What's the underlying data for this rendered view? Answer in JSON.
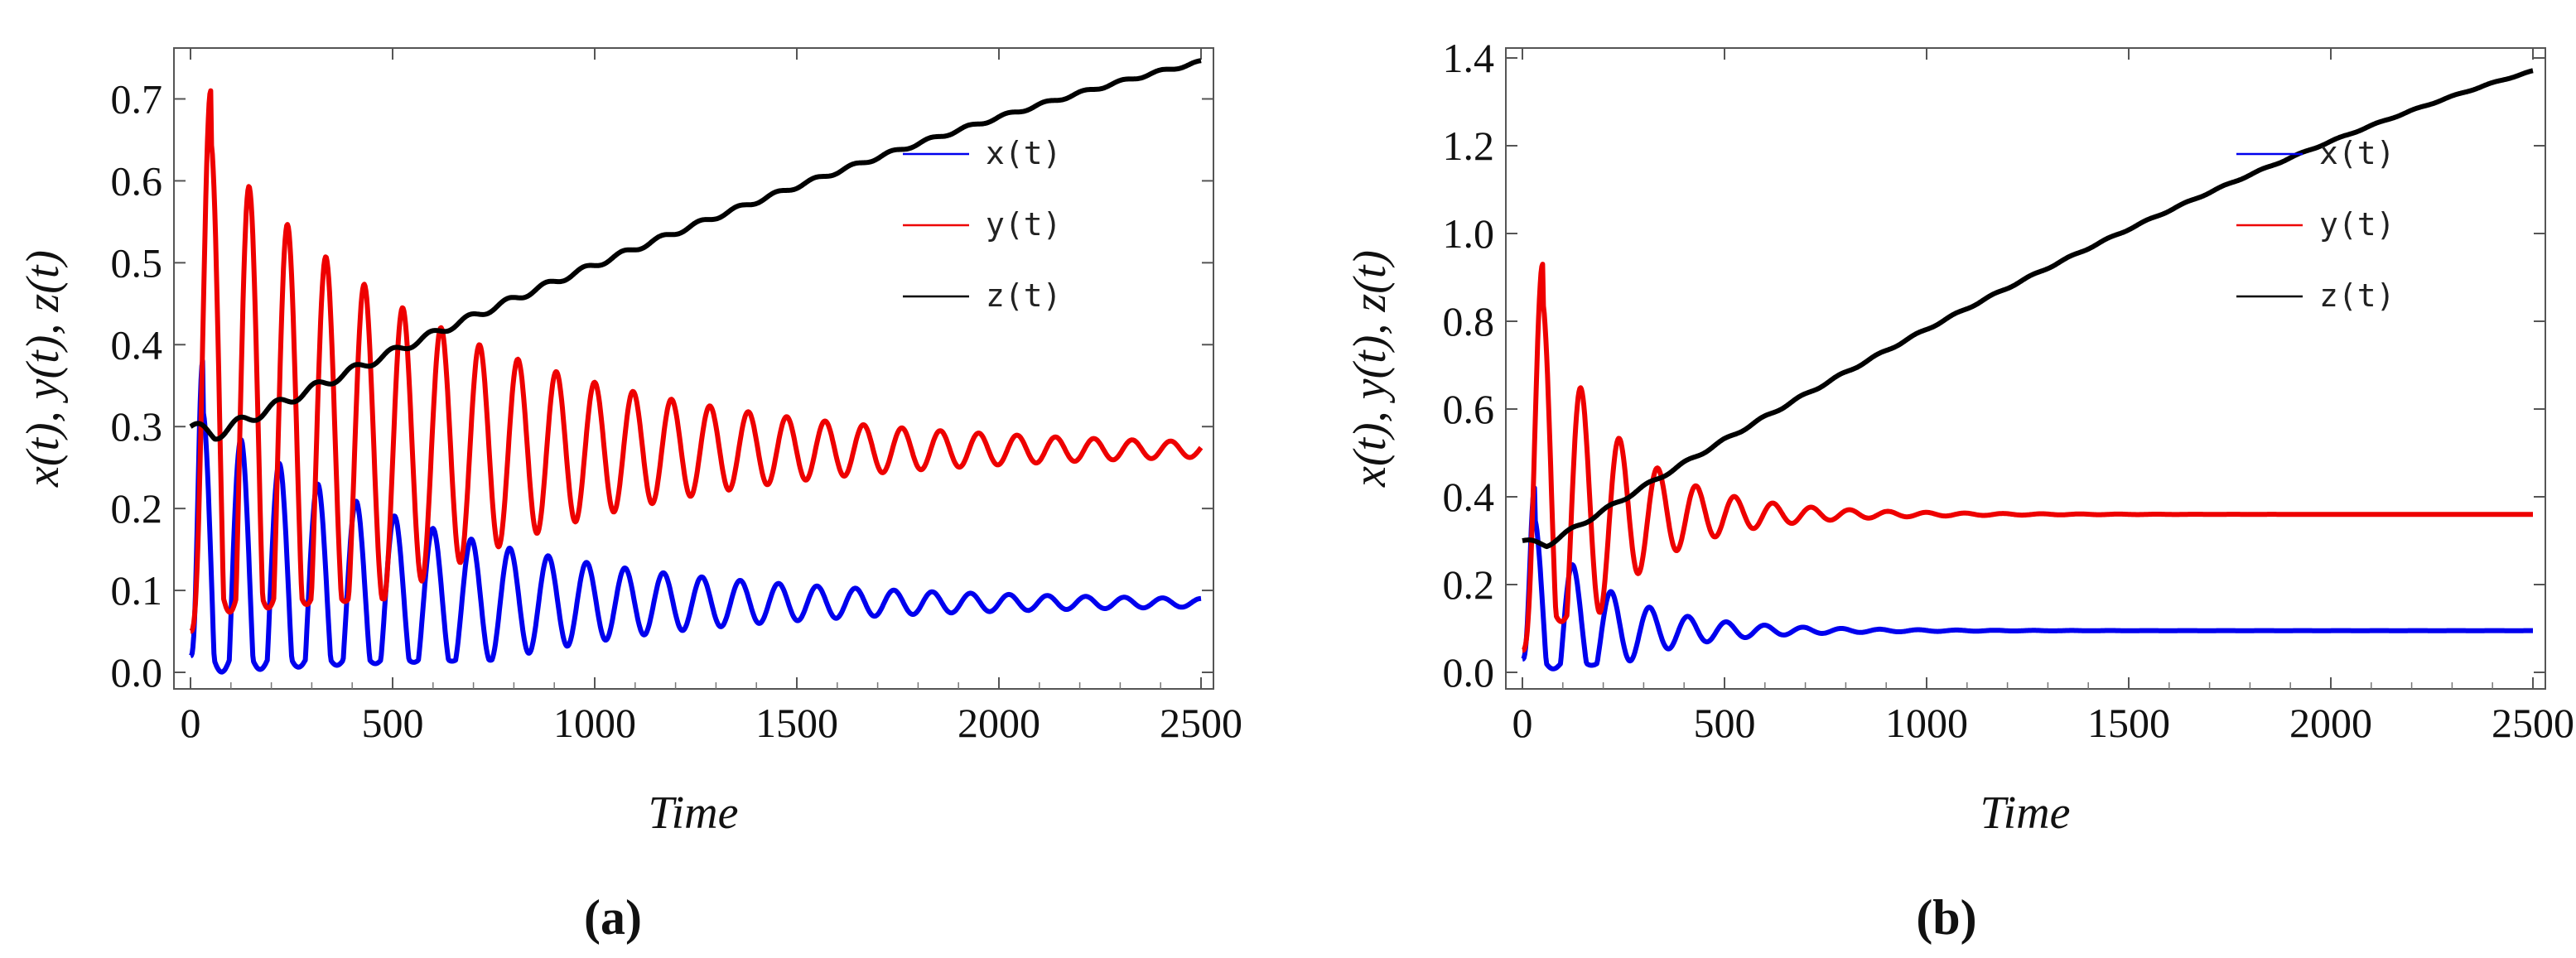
{
  "figure": {
    "caption_a": "(a)",
    "caption_b": "(b)"
  },
  "colors": {
    "x": "#0000ee",
    "y": "#ee0000",
    "z": "#000000"
  },
  "chart_data": [
    {
      "id": "a",
      "type": "line",
      "title": "",
      "xlabel": "Time",
      "ylabel": "x(t),  y(t),  z(t)",
      "xlim": [
        0,
        2500
      ],
      "ylim": [
        0,
        0.75
      ],
      "xticks": [
        0,
        500,
        1000,
        1500,
        2000,
        2500
      ],
      "xtick_labels": [
        "0",
        "500",
        "1000",
        "1500",
        "2000",
        "2500"
      ],
      "yticks": [
        0,
        0.1,
        0.2,
        0.3,
        0.4,
        0.5,
        0.6,
        0.7
      ],
      "ytick_labels": [
        "0.0",
        "0.1",
        "0.2",
        "0.3",
        "0.4",
        "0.5",
        "0.6",
        "0.7"
      ],
      "legend": [
        "x(t)",
        "y(t)",
        "z(t)"
      ],
      "legend_position": "upper-right",
      "grid": false,
      "series": [
        {
          "name": "x(t)",
          "color_key": "x",
          "initial": 0.02,
          "peak": 0.38,
          "peak_time": 30,
          "equilibrium": 0.085,
          "amp0": 0.16,
          "decay": 0.0012,
          "period": 95,
          "end_amp": 0.005,
          "trough_min": 0.015
        },
        {
          "name": "y(t)",
          "color_key": "y",
          "initial": 0.05,
          "peak": 0.71,
          "peak_time": 50,
          "equilibrium": 0.272,
          "amp0": 0.3,
          "decay": 0.0012,
          "period": 95,
          "end_amp": 0.008,
          "trough_min": 0.09
        },
        {
          "name": "z(t)",
          "color_key": "z",
          "start": 0.3,
          "dip": 0.29,
          "end": 0.745,
          "trend": "rising",
          "wiggle_amp": 0.006,
          "period": 95
        }
      ]
    },
    {
      "id": "b",
      "type": "line",
      "title": "",
      "xlabel": "Time",
      "ylabel": "x(t),  y(t),  z(t)",
      "xlim": [
        0,
        2500
      ],
      "ylim": [
        0,
        1.4
      ],
      "xticks": [
        0,
        500,
        1000,
        1500,
        2000,
        2500
      ],
      "xtick_labels": [
        "0",
        "500",
        "1000",
        "1500",
        "2000",
        "2500"
      ],
      "yticks": [
        0,
        0.2,
        0.4,
        0.6,
        0.8,
        1.0,
        1.2,
        1.4
      ],
      "ytick_labels": [
        "0.0",
        "0.2",
        "0.4",
        "0.6",
        "0.8",
        "1.0",
        "1.2",
        "1.4"
      ],
      "legend": [
        "x(t)",
        "y(t)",
        "z(t)"
      ],
      "legend_position": "upper-right",
      "grid": false,
      "series": [
        {
          "name": "x(t)",
          "color_key": "x",
          "initial": 0.03,
          "peak": 0.42,
          "peak_time": 30,
          "equilibrium": 0.095,
          "amp0": 0.17,
          "decay": 0.004,
          "period": 95,
          "end_amp": 0.0,
          "trough_min": 0.02
        },
        {
          "name": "y(t)",
          "color_key": "y",
          "initial": 0.05,
          "peak": 0.93,
          "peak_time": 50,
          "equilibrium": 0.36,
          "amp0": 0.38,
          "decay": 0.004,
          "period": 95,
          "end_amp": 0.0,
          "trough_min": 0.13
        },
        {
          "name": "z(t)",
          "color_key": "z",
          "start": 0.3,
          "dip": 0.29,
          "end": 1.37,
          "trend": "rising",
          "wiggle_amp": 0.004,
          "period": 95
        }
      ]
    }
  ]
}
